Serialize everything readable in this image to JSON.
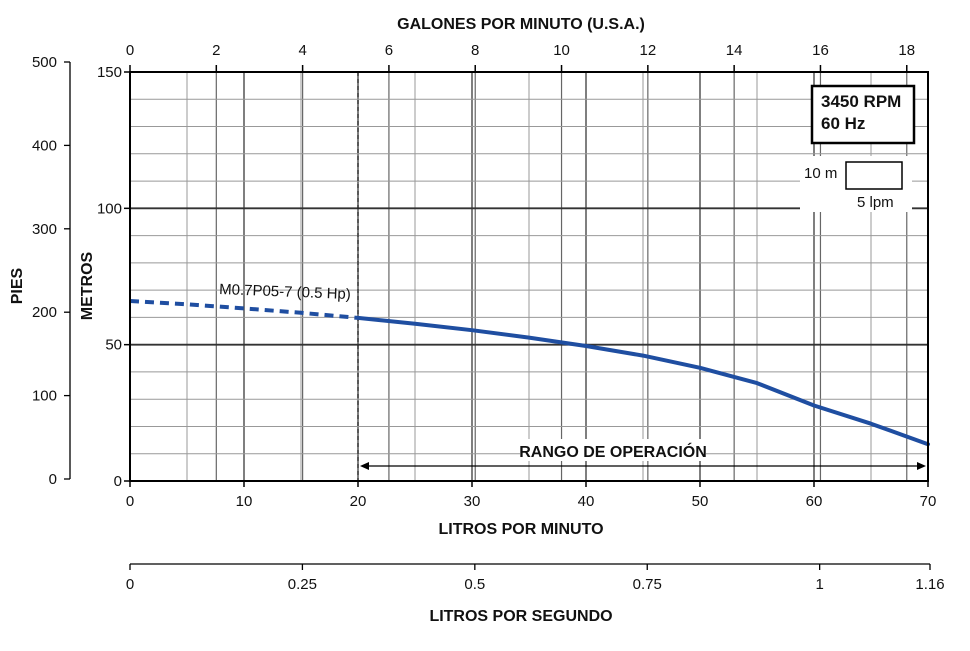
{
  "chart_data": {
    "type": "line",
    "top_axis": {
      "label": "GALONES POR MINUTO (U.S.A.)",
      "ticks": [
        0,
        2,
        4,
        6,
        8,
        10,
        12,
        14,
        16,
        18
      ]
    },
    "bottom_axis": {
      "label": "LITROS POR MINUTO",
      "ticks": [
        0,
        10,
        20,
        30,
        40,
        50,
        60,
        70
      ],
      "xlim": [
        0,
        70
      ]
    },
    "flow_lps_axis": {
      "label": "LITROS POR SEGUNDO",
      "ticks": [
        "0",
        "0.25",
        "0.5",
        "0.75",
        "1",
        "1.16"
      ]
    },
    "left_axis_meters": {
      "label": "METROS",
      "ticks": [
        0,
        50,
        100,
        150
      ],
      "ylim": [
        0,
        150
      ]
    },
    "left_axis_feet": {
      "label": "PIES",
      "ticks": [
        0,
        100,
        200,
        300,
        400,
        500
      ]
    },
    "series": [
      {
        "name": "M0.7P05-7 (0.5 Hp)",
        "color": "#1f4ea1",
        "dashed_until_x": 20,
        "x": [
          0,
          5,
          10,
          15,
          20,
          25,
          30,
          35,
          40,
          45,
          50,
          55,
          60,
          65,
          70
        ],
        "y": [
          66,
          64.8,
          63.3,
          61.7,
          59.8,
          57.7,
          55.3,
          52.6,
          49.5,
          46,
          41.5,
          35.9,
          27.7,
          21,
          13.5
        ]
      }
    ],
    "operating_range": {
      "label": "RANGO DE OPERACIÓN",
      "x_start": 20,
      "x_end": 70
    },
    "info_box": {
      "line1": "3450 RPM",
      "line2": "60 Hz"
    },
    "scale_key": {
      "height_label": "10 m",
      "width_label": "5 lpm"
    },
    "grid": true
  }
}
